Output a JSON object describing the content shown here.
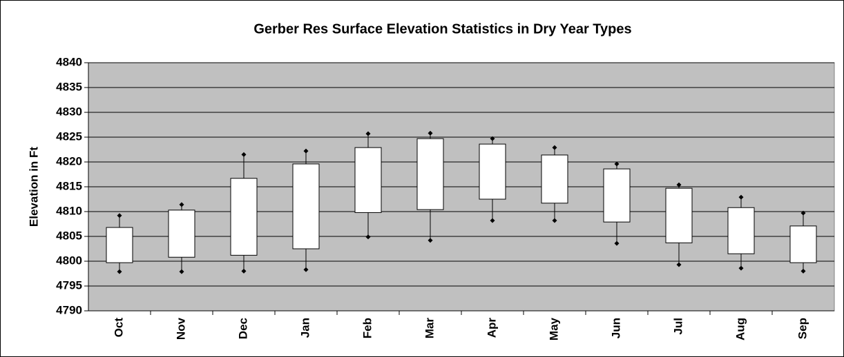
{
  "chart_data": {
    "type": "box",
    "title": "Gerber Res Surface Elevation Statistics in Dry Year Types",
    "y_label": "Elevation in Ft",
    "categories": [
      "Oct",
      "Nov",
      "Dec",
      "Jan",
      "Feb",
      "Mar",
      "Apr",
      "May",
      "Jun",
      "Jul",
      "Aug",
      "Sep"
    ],
    "min": [
      4797.9,
      4797.9,
      4798.0,
      4798.3,
      4804.9,
      4804.2,
      4808.2,
      4808.2,
      4803.6,
      4799.3,
      4798.6,
      4798.0
    ],
    "q1": [
      4799.7,
      4800.8,
      4801.2,
      4802.5,
      4809.8,
      4810.4,
      4812.5,
      4811.7,
      4807.9,
      4803.7,
      4801.5,
      4799.7
    ],
    "q3": [
      4806.8,
      4810.3,
      4816.7,
      4819.6,
      4822.9,
      4824.7,
      4823.6,
      4821.4,
      4818.6,
      4814.7,
      4810.8,
      4807.1
    ],
    "max": [
      4809.2,
      4811.4,
      4821.5,
      4822.2,
      4825.7,
      4825.8,
      4824.7,
      4822.9,
      4819.6,
      4815.4,
      4812.9,
      4809.7
    ],
    "box_color": "#ffffff",
    "plot_background": "#c0c0c0",
    "ylim": [
      4790,
      4840
    ],
    "yticks": [
      4790,
      4795,
      4800,
      4805,
      4810,
      4815,
      4820,
      4825,
      4830,
      4835,
      4840
    ],
    "grid": true
  }
}
